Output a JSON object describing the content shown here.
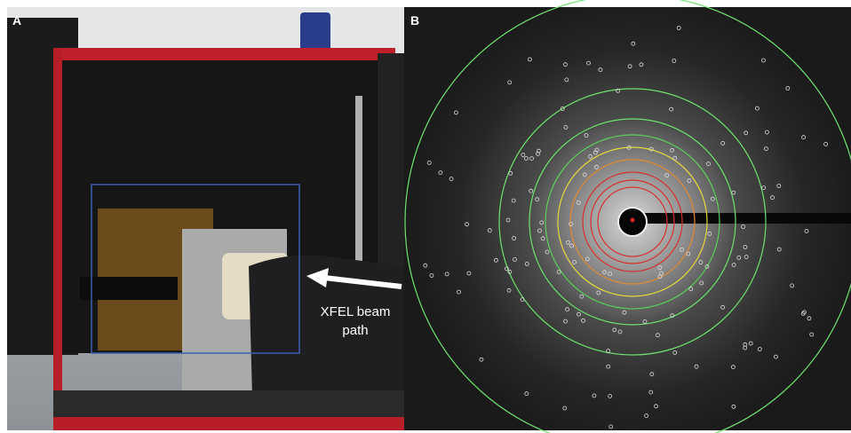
{
  "panels": [
    {
      "label": "A",
      "annotation_lines": [
        "XFEL beam",
        "path"
      ]
    },
    {
      "label": "B"
    }
  ]
}
